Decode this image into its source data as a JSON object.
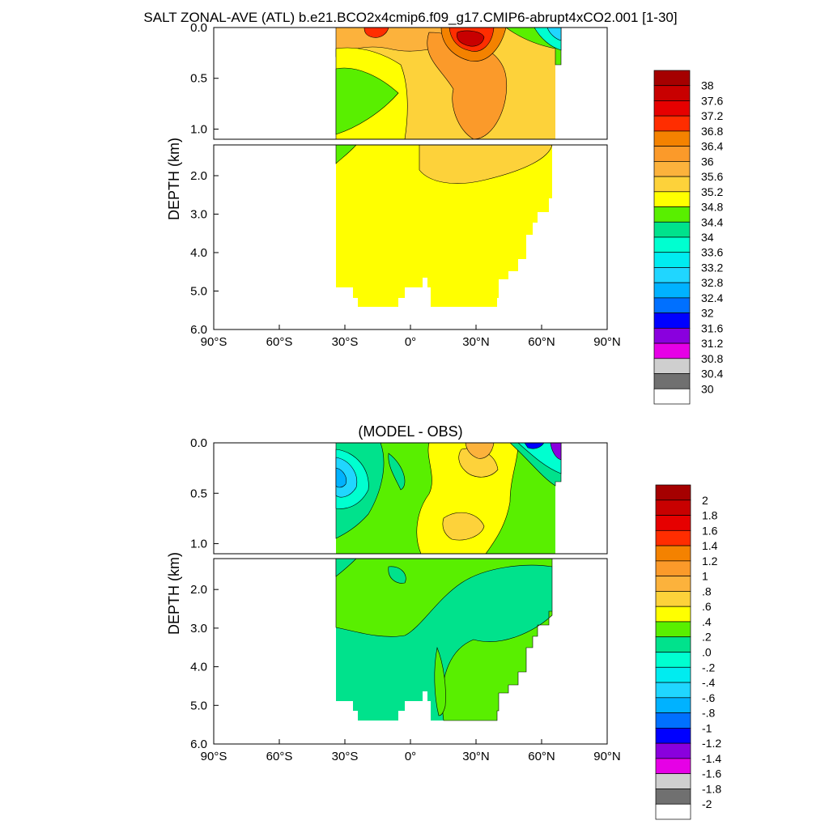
{
  "title": "SALT ZONAL-AVE (ATL) b.e21.BCO2x4cmip6.f09_g17.CMIP6-abrupt4xCO2.001 [1-30]",
  "chart_data": [
    {
      "type": "heatmap",
      "title": "",
      "xlabel": "",
      "ylabel": "DEPTH (km)",
      "xlim": [
        -90,
        90
      ],
      "ylim_upper_km": [
        0,
        1.1
      ],
      "ylim_lower_km": [
        1.2,
        6.0
      ],
      "x_ticks": [
        "90°S",
        "60°S",
        "30°S",
        "0°",
        "30°N",
        "60°N",
        "90°N"
      ],
      "y_ticks_upper": [
        "0.0",
        "0.5",
        "1.0"
      ],
      "y_ticks_lower": [
        "2.0",
        "3.0",
        "4.0",
        "5.0",
        "6.0"
      ],
      "colorbar": {
        "labels": [
          "38",
          "37.6",
          "37.2",
          "36.8",
          "36.4",
          "36",
          "35.6",
          "35.2",
          "34.8",
          "34.4",
          "34",
          "33.6",
          "33.2",
          "32.8",
          "32.4",
          "32",
          "31.6",
          "31.2",
          "30.8",
          "30.4",
          "30"
        ],
        "colors": [
          "#a50000",
          "#c80000",
          "#e60000",
          "#ff2d00",
          "#f48200",
          "#fb9a2a",
          "#fcb23c",
          "#fdd23a",
          "#ffff00",
          "#59ef00",
          "#00e28c",
          "#00ffd0",
          "#00ecf0",
          "#20d6ff",
          "#00b2ff",
          "#0070ff",
          "#0000ff",
          "#8a00de",
          "#e600e6",
          "#cfcfcf",
          "#707070",
          "#ffffff"
        ]
      }
    },
    {
      "type": "heatmap",
      "title": "(MODEL - OBS)",
      "xlabel": "",
      "ylabel": "DEPTH (km)",
      "xlim": [
        -90,
        90
      ],
      "ylim_upper_km": [
        0,
        1.1
      ],
      "ylim_lower_km": [
        1.2,
        6.0
      ],
      "x_ticks": [
        "90°S",
        "60°S",
        "30°S",
        "0°",
        "30°N",
        "60°N",
        "90°N"
      ],
      "y_ticks_upper": [
        "0.0",
        "0.5",
        "1.0"
      ],
      "y_ticks_lower": [
        "2.0",
        "3.0",
        "4.0",
        "5.0",
        "6.0"
      ],
      "colorbar": {
        "labels": [
          "2",
          "1.8",
          "1.6",
          "1.4",
          "1.2",
          "1",
          ".8",
          ".6",
          ".4",
          ".2",
          ".0",
          "-.2",
          "-.4",
          "-.6",
          "-.8",
          "-1",
          "-1.2",
          "-1.4",
          "-1.6",
          "-1.8",
          "-2"
        ],
        "colors": [
          "#a50000",
          "#c80000",
          "#e60000",
          "#ff2d00",
          "#f48200",
          "#fb9a2a",
          "#fcb23c",
          "#fdd23a",
          "#ffff00",
          "#59ef00",
          "#00e28c",
          "#00ffd0",
          "#00ecf0",
          "#20d6ff",
          "#00b2ff",
          "#0070ff",
          "#0000ff",
          "#8a00de",
          "#e600e6",
          "#cfcfcf",
          "#707070",
          "#ffffff"
        ]
      }
    }
  ]
}
